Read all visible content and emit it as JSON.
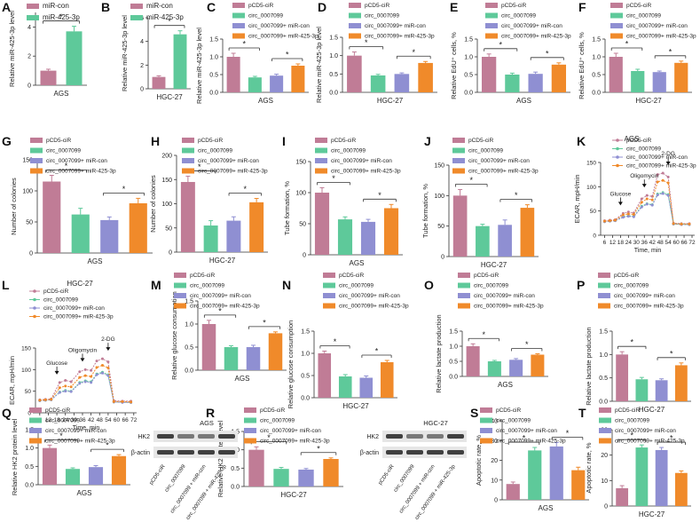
{
  "colors": {
    "ctrl": "#c07c96",
    "circ": "#5ec99a",
    "mircon": "#8f8fd2",
    "mir": "#f08a2a",
    "grey": "#e6e6e6",
    "axis": "#333333",
    "text": "#222222",
    "band": "#2e2e2e"
  },
  "legend_sets": {
    "two": [
      "miR-con",
      "miR-425-3p"
    ],
    "four": [
      "pCD5-ciR",
      "circ_0007099",
      "circ_0007099+ miR-con",
      "circ_0007099+ miR-425-3p"
    ]
  },
  "blots": {
    "AGS": {
      "title": "AGS",
      "rows": [
        "HK2",
        "β-actin"
      ],
      "lanes": [
        "pCD5-ciR",
        "circ_0007099",
        "circ_0007099 + miR-con",
        "circ_0007099 + miR-425-3p"
      ]
    },
    "HGC": {
      "title": "HGC-27",
      "rows": [
        "HK2",
        "β-actin"
      ],
      "lanes": [
        "pCD5-ciR",
        "circ_0007099",
        "circ_0007099 + miR-con",
        "circ_0007099 + miR-425-3p"
      ]
    }
  },
  "chart_data": [
    {
      "panel": "A",
      "type": "bar",
      "legend": "two",
      "categories": [
        "miR-con",
        "miR-425-3p"
      ],
      "values": [
        1.0,
        3.7
      ],
      "errors": [
        0.1,
        0.35
      ],
      "ylim": [
        0,
        5
      ],
      "yticks": [
        0,
        2,
        4
      ],
      "ylabel": "Relative miR-425-3p level",
      "xlabel": "AGS",
      "sig": [
        {
          "a": 0,
          "b": 1,
          "text": "*"
        }
      ]
    },
    {
      "panel": "B",
      "type": "bar",
      "legend": "two",
      "categories": [
        "miR-con",
        "miR-425-3p"
      ],
      "values": [
        1.0,
        4.6
      ],
      "errors": [
        0.1,
        0.3
      ],
      "ylim": [
        0,
        6
      ],
      "yticks": [
        0,
        2,
        4,
        6
      ],
      "ylabel": "Relative miR-425-3p level",
      "xlabel": "HGC-27",
      "sig": [
        {
          "a": 0,
          "b": 1,
          "text": "*"
        }
      ]
    },
    {
      "panel": "C",
      "type": "bar",
      "legend": "four",
      "categories": [
        "pCD5-ciR",
        "circ_0007099",
        "circ_0007099+ miR-con",
        "circ_0007099+ miR-425-3p"
      ],
      "values": [
        1.0,
        0.42,
        0.47,
        0.75
      ],
      "errors": [
        0.1,
        0.03,
        0.04,
        0.05
      ],
      "ylim": [
        0,
        1.5
      ],
      "yticks": [
        0,
        0.5,
        1.0,
        1.5
      ],
      "ylabel": "Relative miR-425-3p level",
      "xlabel": "AGS",
      "sig": [
        {
          "a": 0,
          "b": 1,
          "text": "*"
        },
        {
          "a": 2,
          "b": 3,
          "text": "*"
        }
      ]
    },
    {
      "panel": "D",
      "type": "bar",
      "legend": "four",
      "categories": [
        "pCD5-ciR",
        "circ_0007099",
        "circ_0007099+ miR-con",
        "circ_0007099+ miR-425-3p"
      ],
      "values": [
        1.0,
        0.46,
        0.5,
        0.8
      ],
      "errors": [
        0.1,
        0.03,
        0.03,
        0.04
      ],
      "ylim": [
        0,
        1.5
      ],
      "yticks": [
        0,
        0.5,
        1.0,
        1.5
      ],
      "ylabel": "Relative miR-425-3p level",
      "xlabel": "HGC-27",
      "sig": [
        {
          "a": 0,
          "b": 1,
          "text": "*"
        },
        {
          "a": 2,
          "b": 3,
          "text": "*"
        }
      ]
    },
    {
      "panel": "E",
      "type": "bar",
      "legend": "four",
      "categories": [
        "pCD5-ciR",
        "circ_0007099",
        "circ_0007099+ miR-con",
        "circ_0007099+ miR-425-3p"
      ],
      "values": [
        1.0,
        0.5,
        0.52,
        0.78
      ],
      "errors": [
        0.08,
        0.04,
        0.05,
        0.05
      ],
      "ylim": [
        0,
        1.5
      ],
      "yticks": [
        0,
        0.5,
        1.0,
        1.5
      ],
      "ylabel": "Relative EdU⁺ cells, %",
      "xlabel": "AGS",
      "sig": [
        {
          "a": 0,
          "b": 1,
          "text": "*"
        },
        {
          "a": 2,
          "b": 3,
          "text": "*"
        }
      ]
    },
    {
      "panel": "F",
      "type": "bar",
      "legend": "four",
      "categories": [
        "pCD5-ciR",
        "circ_0007099",
        "circ_0007099+ miR-con",
        "circ_0007099+ miR-425-3p"
      ],
      "values": [
        1.0,
        0.6,
        0.57,
        0.83
      ],
      "errors": [
        0.1,
        0.05,
        0.03,
        0.05
      ],
      "ylim": [
        0,
        1.5
      ],
      "yticks": [
        0,
        0.5,
        1.0,
        1.5
      ],
      "ylabel": "Relative EdU⁺ cells, %",
      "xlabel": "HGC-27",
      "sig": [
        {
          "a": 0,
          "b": 1,
          "text": "*"
        },
        {
          "a": 2,
          "b": 3,
          "text": "*"
        }
      ]
    },
    {
      "panel": "G",
      "type": "bar",
      "legend": "four",
      "categories": [
        "pCD5-ciR",
        "circ_0007099",
        "circ_0007099+ miR-con",
        "circ_0007099+ miR-425-3p"
      ],
      "values": [
        115,
        62,
        53,
        80
      ],
      "errors": [
        10,
        10,
        5,
        8
      ],
      "ylim": [
        0,
        150
      ],
      "yticks": [
        0,
        50,
        100,
        150
      ],
      "ylabel": "Number of colonies",
      "xlabel": "AGS",
      "sig": [
        {
          "a": 0,
          "b": 1,
          "text": "*"
        },
        {
          "a": 2,
          "b": 3,
          "text": "*"
        }
      ]
    },
    {
      "panel": "H",
      "type": "bar",
      "legend": "four",
      "categories": [
        "pCD5-ciR",
        "circ_0007099",
        "circ_0007099+ miR-con",
        "circ_0007099+ miR-425-3p"
      ],
      "values": [
        145,
        55,
        65,
        103
      ],
      "errors": [
        12,
        10,
        8,
        8
      ],
      "ylim": [
        0,
        200
      ],
      "yticks": [
        0,
        50,
        100,
        150,
        200
      ],
      "ylabel": "Number of colonies",
      "xlabel": "HGC-27",
      "sig": [
        {
          "a": 0,
          "b": 1,
          "text": "*"
        },
        {
          "a": 2,
          "b": 3,
          "text": "*"
        }
      ]
    },
    {
      "panel": "I",
      "type": "bar",
      "legend": "four",
      "categories": [
        "pCD5-ciR",
        "circ_0007099",
        "circ_0007099+ miR-con",
        "circ_0007099+ miR-425-3p"
      ],
      "values": [
        100,
        57,
        53,
        75
      ],
      "errors": [
        8,
        4,
        4,
        6
      ],
      "ylim": [
        0,
        150
      ],
      "yticks": [
        0,
        50,
        100,
        150
      ],
      "ylabel": "Tube formation, %",
      "xlabel": "AGS",
      "sig": [
        {
          "a": 0,
          "b": 1,
          "text": "*"
        },
        {
          "a": 2,
          "b": 3,
          "text": "*"
        }
      ]
    },
    {
      "panel": "J",
      "type": "bar",
      "legend": "four",
      "categories": [
        "pCD5-ciR",
        "circ_0007099",
        "circ_0007099+ miR-con",
        "circ_0007099+ miR-425-3p"
      ],
      "values": [
        100,
        50,
        52,
        80
      ],
      "errors": [
        10,
        3,
        8,
        5
      ],
      "ylim": [
        0,
        150
      ],
      "yticks": [
        0,
        50,
        100,
        150
      ],
      "ylabel": "Tube formation, %",
      "xlabel": "HGC-27",
      "sig": [
        {
          "a": 0,
          "b": 1,
          "text": "*"
        },
        {
          "a": 2,
          "b": 3,
          "text": "*"
        }
      ]
    },
    {
      "panel": "K",
      "type": "line",
      "title": "AGS",
      "xlabel": "Time, min",
      "ylabel": "ECAR, mpH/min",
      "xticks": [
        6,
        12,
        18,
        24,
        30,
        36,
        42,
        48,
        54,
        60,
        66,
        72
      ],
      "ylim": [
        0,
        150
      ],
      "yticks": [
        0,
        50,
        100,
        150
      ],
      "series": [
        {
          "name": "pCD5-ciR",
          "color": "#c07c96",
          "values": [
            30,
            31,
            32,
            45,
            48,
            46,
            75,
            82,
            80,
            125,
            128,
            120,
            25,
            24,
            24
          ]
        },
        {
          "name": "circ_0007099",
          "color": "#5ec99a",
          "values": [
            28,
            29,
            30,
            38,
            40,
            39,
            60,
            65,
            63,
            85,
            88,
            84,
            23,
            23,
            22
          ]
        },
        {
          "name": "circ_0007099+ miR-con",
          "color": "#8f8fd2",
          "values": [
            28,
            29,
            30,
            37,
            39,
            38,
            58,
            64,
            62,
            83,
            86,
            82,
            23,
            22,
            22
          ]
        },
        {
          "name": "circ_0007099+ miR-425-3p",
          "color": "#f08a2a",
          "values": [
            29,
            30,
            31,
            42,
            44,
            43,
            68,
            75,
            73,
            110,
            113,
            108,
            24,
            23,
            23
          ]
        }
      ],
      "x": [
        6,
        10,
        14,
        20,
        24,
        28,
        34,
        38,
        42,
        46,
        50,
        54,
        58,
        64,
        70
      ],
      "annotations": [
        {
          "label": "Glucose",
          "x": 18
        },
        {
          "label": "Oligomycin",
          "x": 36
        },
        {
          "label": "2-DG",
          "x": 54
        }
      ]
    },
    {
      "panel": "L",
      "type": "line",
      "title": "HGC-27",
      "xlabel": "Time, min",
      "ylabel": "ECAR, mpH/min",
      "xticks": [
        6,
        12,
        18,
        24,
        30,
        36,
        42,
        48,
        54,
        60,
        66,
        72
      ],
      "ylim": [
        0,
        150
      ],
      "yticks": [
        0,
        50,
        100,
        150
      ],
      "series": [
        {
          "name": "pCD5-ciR",
          "color": "#c07c96",
          "values": [
            30,
            31,
            32,
            70,
            75,
            72,
            95,
            100,
            98,
            120,
            125,
            118,
            28,
            27,
            27
          ]
        },
        {
          "name": "circ_0007099",
          "color": "#5ec99a",
          "values": [
            28,
            29,
            30,
            48,
            52,
            50,
            70,
            74,
            72,
            90,
            94,
            88,
            25,
            25,
            24
          ]
        },
        {
          "name": "circ_0007099+ miR-con",
          "color": "#8f8fd2",
          "values": [
            28,
            29,
            30,
            47,
            50,
            49,
            68,
            72,
            70,
            88,
            92,
            86,
            25,
            24,
            24
          ]
        },
        {
          "name": "circ_0007099+ miR-425-3p",
          "color": "#f08a2a",
          "values": [
            29,
            30,
            31,
            58,
            62,
            60,
            82,
            86,
            84,
            105,
            110,
            104,
            26,
            26,
            25
          ]
        }
      ],
      "x": [
        6,
        10,
        14,
        20,
        24,
        28,
        34,
        38,
        42,
        46,
        50,
        54,
        58,
        64,
        70
      ],
      "annotations": [
        {
          "label": "Glucose",
          "x": 18
        },
        {
          "label": "Oligomycin",
          "x": 36
        },
        {
          "label": "2-DG",
          "x": 54
        }
      ]
    },
    {
      "panel": "M",
      "type": "bar",
      "legend": "four",
      "categories": [
        "pCD5-ciR",
        "circ_0007099",
        "circ_0007099+ miR-con",
        "circ_0007099+ miR-425-3p"
      ],
      "values": [
        1.0,
        0.5,
        0.5,
        0.8
      ],
      "errors": [
        0.08,
        0.03,
        0.04,
        0.03
      ],
      "ylim": [
        0,
        1.5
      ],
      "yticks": [
        0,
        0.5,
        1.0,
        1.5
      ],
      "ylabel": "Relative glucose consumption",
      "xlabel": "AGS",
      "sig": [
        {
          "a": 0,
          "b": 1,
          "text": "*"
        },
        {
          "a": 2,
          "b": 3,
          "text": "*"
        }
      ]
    },
    {
      "panel": "N",
      "type": "bar",
      "legend": "four",
      "categories": [
        "pCD5-ciR",
        "circ_0007099",
        "circ_0007099+ miR-con",
        "circ_0007099+ miR-425-3p"
      ],
      "values": [
        1.0,
        0.48,
        0.45,
        0.8
      ],
      "errors": [
        0.05,
        0.04,
        0.04,
        0.04
      ],
      "ylim": [
        0,
        1.5
      ],
      "yticks": [
        0,
        0.5,
        1.0,
        1.5
      ],
      "ylabel": "Relative glucose consumption",
      "xlabel": "HGC-27",
      "sig": [
        {
          "a": 0,
          "b": 1,
          "text": "*"
        },
        {
          "a": 2,
          "b": 3,
          "text": "*"
        }
      ]
    },
    {
      "panel": "O",
      "type": "bar",
      "legend": "four",
      "categories": [
        "pCD5-ciR",
        "circ_0007099",
        "circ_0007099+ miR-con",
        "circ_0007099+ miR-425-3p"
      ],
      "values": [
        1.0,
        0.5,
        0.55,
        0.72
      ],
      "errors": [
        0.08,
        0.03,
        0.04,
        0.03
      ],
      "ylim": [
        0,
        1.5
      ],
      "yticks": [
        0,
        0.5,
        1.0,
        1.5
      ],
      "ylabel": "Relative lactate production",
      "xlabel": "AGS",
      "sig": [
        {
          "a": 0,
          "b": 1,
          "text": "*"
        },
        {
          "a": 2,
          "b": 3,
          "text": "*"
        }
      ]
    },
    {
      "panel": "P",
      "type": "bar",
      "legend": "four",
      "categories": [
        "pCD5-ciR",
        "circ_0007099",
        "circ_0007099+ miR-con",
        "circ_0007099+ miR-425-3p"
      ],
      "values": [
        1.0,
        0.47,
        0.45,
        0.77
      ],
      "errors": [
        0.06,
        0.04,
        0.03,
        0.05
      ],
      "ylim": [
        0,
        1.5
      ],
      "yticks": [
        0,
        0.5,
        1.0,
        1.5
      ],
      "ylabel": "Relative lactate production",
      "xlabel": "HGC-27",
      "sig": [
        {
          "a": 0,
          "b": 1,
          "text": "*"
        },
        {
          "a": 2,
          "b": 3,
          "text": "*"
        }
      ]
    },
    {
      "panel": "Q",
      "type": "bar",
      "legend": "four",
      "categories": [
        "pCD5-ciR",
        "circ_0007099",
        "circ_0007099+ miR-con",
        "circ_0007099+ miR-425-3p"
      ],
      "values": [
        1.0,
        0.43,
        0.48,
        0.78
      ],
      "errors": [
        0.08,
        0.03,
        0.04,
        0.04
      ],
      "ylim": [
        0,
        1.5
      ],
      "yticks": [
        0,
        0.5,
        1.0,
        1.5
      ],
      "ylabel": "Relative HK2 protein level",
      "xlabel": "AGS",
      "sig": [
        {
          "a": 0,
          "b": 1,
          "text": "*"
        },
        {
          "a": 2,
          "b": 3,
          "text": "*"
        }
      ]
    },
    {
      "panel": "R",
      "type": "bar",
      "legend": "four",
      "categories": [
        "pCD5-ciR",
        "circ_0007099",
        "circ_0007099+ miR-con",
        "circ_0007099+ miR-425-3p"
      ],
      "values": [
        1.0,
        0.48,
        0.46,
        0.75
      ],
      "errors": [
        0.08,
        0.04,
        0.03,
        0.03
      ],
      "ylim": [
        0,
        1.5
      ],
      "yticks": [
        0,
        0.5,
        1.0,
        1.5
      ],
      "ylabel": "Relative HK2 protein level",
      "xlabel": "HGC-27",
      "sig": [
        {
          "a": 0,
          "b": 1,
          "text": "*"
        },
        {
          "a": 2,
          "b": 3,
          "text": "*"
        }
      ]
    },
    {
      "panel": "S",
      "type": "bar",
      "legend": "four",
      "categories": [
        "pCD5-ciR",
        "circ_0007099",
        "circ_0007099+ miR-con",
        "circ_0007099+ miR-425-3p"
      ],
      "values": [
        8,
        25,
        27,
        15
      ],
      "errors": [
        1,
        1.5,
        2,
        1.5
      ],
      "ylim": [
        0,
        40
      ],
      "yticks": [
        0,
        10,
        20,
        30,
        40
      ],
      "ylabel": "Apoptotic rate, %",
      "xlabel": "AGS",
      "sig": [
        {
          "a": 0,
          "b": 1,
          "text": "*"
        },
        {
          "a": 2,
          "b": 3,
          "text": "*"
        }
      ]
    },
    {
      "panel": "T",
      "type": "bar",
      "legend": "four",
      "categories": [
        "pCD5-ciR",
        "circ_0007099",
        "circ_0007099+ miR-con",
        "circ_0007099+ miR-425-3p"
      ],
      "values": [
        7,
        23,
        22,
        13
      ],
      "errors": [
        1,
        1,
        1,
        0.8
      ],
      "ylim": [
        0,
        30
      ],
      "yticks": [
        0,
        10,
        20,
        30
      ],
      "ylabel": "Apoptotic rate, %",
      "xlabel": "HGC-27",
      "sig": [
        {
          "a": 0,
          "b": 1,
          "text": "*"
        },
        {
          "a": 2,
          "b": 3,
          "text": "*"
        }
      ]
    }
  ]
}
